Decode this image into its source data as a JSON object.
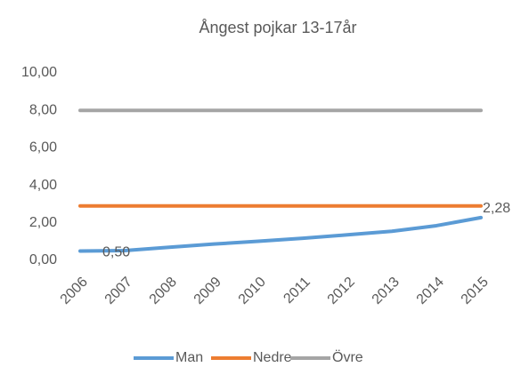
{
  "chart_data": {
    "type": "line",
    "title": "Ångest pojkar 13-17år",
    "categories": [
      "2006",
      "2007",
      "2008",
      "2009",
      "2010",
      "2011",
      "2012",
      "2013",
      "2014",
      "2015"
    ],
    "series": [
      {
        "name": "Man",
        "color": "#5b9bd5",
        "values": [
          0.5,
          0.52,
          0.7,
          0.87,
          1.02,
          1.18,
          1.36,
          1.55,
          1.85,
          2.28
        ],
        "value_labels": [
          "0,50",
          null,
          null,
          null,
          null,
          null,
          null,
          null,
          null,
          "2,28"
        ]
      },
      {
        "name": "Nedre",
        "color": "#ed7d31",
        "values": [
          2.9,
          2.9,
          2.9,
          2.9,
          2.9,
          2.9,
          2.9,
          2.9,
          2.9,
          2.9
        ]
      },
      {
        "name": "Övre",
        "color": "#a5a5a5",
        "values": [
          8.0,
          8.0,
          8.0,
          8.0,
          8.0,
          8.0,
          8.0,
          8.0,
          8.0,
          8.0
        ]
      }
    ],
    "ylim": [
      0,
      10
    ],
    "yticks": [
      {
        "value": 0,
        "label": "0,00"
      },
      {
        "value": 2,
        "label": "2,00"
      },
      {
        "value": 4,
        "label": "4,00"
      },
      {
        "value": 6,
        "label": "6,00"
      },
      {
        "value": 8,
        "label": "8,00"
      },
      {
        "value": 10,
        "label": "10,00"
      }
    ],
    "grid": false,
    "legend": "bottom"
  }
}
